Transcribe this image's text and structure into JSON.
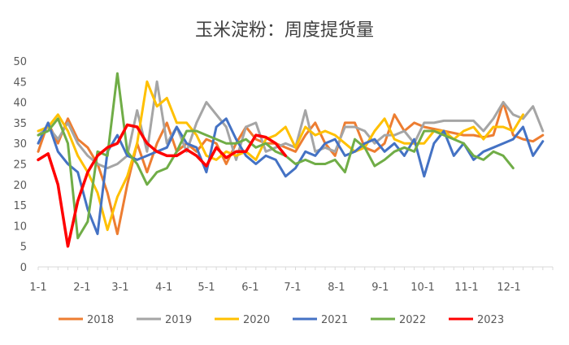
{
  "chart_data": {
    "type": "line",
    "title": "玉米淀粉：周度提货量",
    "xlabel": "",
    "ylabel": "",
    "ylim": [
      0,
      50
    ],
    "yticks": [
      0,
      5,
      10,
      15,
      20,
      25,
      30,
      35,
      40,
      45,
      50
    ],
    "x_tick_labels": [
      "1-1",
      "2-1",
      "3-1",
      "4-1",
      "5-1",
      "6-1",
      "7-1",
      "8-1",
      "9-1",
      "10-1",
      "11-1",
      "12-1"
    ],
    "x_tick_weeks": [
      1,
      5.43,
      9.29,
      13.71,
      18,
      22.43,
      26.71,
      31.14,
      35.57,
      39.86,
      44.29,
      48.57
    ],
    "week_range": [
      1,
      53
    ],
    "grid": false,
    "legend_position": "bottom",
    "series": [
      {
        "name": "2018",
        "color": "#ED7D31",
        "points": [
          [
            1,
            28
          ],
          [
            2,
            35
          ],
          [
            3,
            30
          ],
          [
            4,
            36
          ],
          [
            5,
            31
          ],
          [
            6,
            29
          ],
          [
            7,
            25
          ],
          [
            8,
            18
          ],
          [
            9,
            8
          ],
          [
            10,
            20
          ],
          [
            11,
            30
          ],
          [
            12,
            23
          ],
          [
            13,
            30
          ],
          [
            14,
            35
          ],
          [
            15,
            28
          ],
          [
            16,
            30
          ],
          [
            17,
            28
          ],
          [
            18,
            31
          ],
          [
            19,
            30
          ],
          [
            20,
            25
          ],
          [
            21,
            30
          ],
          [
            22,
            34
          ],
          [
            23,
            31
          ],
          [
            24,
            30
          ],
          [
            25,
            30
          ],
          [
            26,
            29
          ],
          [
            27,
            28
          ],
          [
            28,
            32
          ],
          [
            29,
            35
          ],
          [
            30,
            30
          ],
          [
            31,
            27
          ],
          [
            32,
            35
          ],
          [
            33,
            35
          ],
          [
            34,
            29
          ],
          [
            35,
            28
          ],
          [
            36,
            30
          ],
          [
            37,
            37
          ],
          [
            38,
            33
          ],
          [
            39,
            35
          ],
          [
            40,
            34
          ],
          [
            41,
            33.5
          ],
          [
            42,
            33
          ],
          [
            43,
            32.5
          ],
          [
            44,
            32
          ],
          [
            45,
            32
          ],
          [
            46,
            31.5
          ],
          [
            47,
            32
          ],
          [
            48,
            40
          ],
          [
            49,
            32
          ],
          [
            50,
            31
          ],
          [
            51,
            30.5
          ],
          [
            52,
            32
          ]
        ]
      },
      {
        "name": "2019",
        "color": "#A5A5A5",
        "points": [
          [
            1,
            32
          ],
          [
            2,
            34
          ],
          [
            3,
            31
          ],
          [
            4,
            35
          ],
          [
            5,
            30
          ],
          [
            6,
            27
          ],
          [
            7,
            25
          ],
          [
            8,
            24
          ],
          [
            9,
            25
          ],
          [
            10,
            27
          ],
          [
            11,
            38
          ],
          [
            12,
            28
          ],
          [
            13,
            45
          ],
          [
            14,
            30
          ],
          [
            15,
            34
          ],
          [
            16,
            28
          ],
          [
            17,
            35
          ],
          [
            18,
            40
          ],
          [
            19,
            37
          ],
          [
            20,
            34
          ],
          [
            21,
            26
          ],
          [
            22,
            34
          ],
          [
            23,
            35
          ],
          [
            24,
            28
          ],
          [
            25,
            29
          ],
          [
            26,
            30
          ],
          [
            27,
            29
          ],
          [
            28,
            38
          ],
          [
            29,
            28
          ],
          [
            30,
            29
          ],
          [
            31,
            28
          ],
          [
            32,
            34
          ],
          [
            33,
            34
          ],
          [
            34,
            33
          ],
          [
            35,
            30
          ],
          [
            36,
            32
          ],
          [
            37,
            32
          ],
          [
            38,
            33
          ],
          [
            39,
            30
          ],
          [
            40,
            35
          ],
          [
            41,
            35
          ],
          [
            42,
            35.5
          ],
          [
            43,
            35.5
          ],
          [
            44,
            35.5
          ],
          [
            45,
            35.5
          ],
          [
            46,
            33
          ],
          [
            47,
            36
          ],
          [
            48,
            40
          ],
          [
            49,
            37
          ],
          [
            50,
            36
          ],
          [
            51,
            39
          ],
          [
            52,
            33
          ]
        ]
      },
      {
        "name": "2020",
        "color": "#FFC000",
        "points": [
          [
            1,
            33
          ],
          [
            2,
            34
          ],
          [
            3,
            37
          ],
          [
            4,
            33
          ],
          [
            5,
            27
          ],
          [
            6,
            23
          ],
          [
            7,
            18
          ],
          [
            8,
            9
          ],
          [
            9,
            17
          ],
          [
            10,
            22
          ],
          [
            11,
            30
          ],
          [
            12,
            45
          ],
          [
            13,
            39
          ],
          [
            14,
            41
          ],
          [
            15,
            35
          ],
          [
            16,
            35
          ],
          [
            17,
            32
          ],
          [
            18,
            27
          ],
          [
            19,
            26
          ],
          [
            20,
            28
          ],
          [
            21,
            27
          ],
          [
            22,
            28
          ],
          [
            23,
            26
          ],
          [
            24,
            31
          ],
          [
            25,
            32
          ],
          [
            26,
            34
          ],
          [
            27,
            29
          ],
          [
            28,
            34
          ],
          [
            29,
            32
          ],
          [
            30,
            33
          ],
          [
            31,
            32
          ],
          [
            32,
            30
          ],
          [
            33,
            28
          ],
          [
            34,
            29
          ],
          [
            35,
            33
          ],
          [
            36,
            36
          ],
          [
            37,
            31
          ],
          [
            38,
            30
          ],
          [
            39,
            30
          ],
          [
            40,
            30
          ],
          [
            41,
            33
          ],
          [
            42,
            33
          ],
          [
            43,
            31
          ],
          [
            44,
            33
          ],
          [
            45,
            34
          ],
          [
            46,
            31
          ],
          [
            47,
            34
          ],
          [
            48,
            34
          ],
          [
            49,
            33
          ],
          [
            50,
            37
          ]
        ]
      },
      {
        "name": "2021",
        "color": "#4472C4",
        "points": [
          [
            1,
            30
          ],
          [
            2,
            35
          ],
          [
            3,
            28
          ],
          [
            4,
            25
          ],
          [
            5,
            23
          ],
          [
            6,
            14
          ],
          [
            7,
            8
          ],
          [
            8,
            28
          ],
          [
            9,
            32
          ],
          [
            10,
            27
          ],
          [
            11,
            26
          ],
          [
            12,
            27
          ],
          [
            13,
            28
          ],
          [
            14,
            29
          ],
          [
            15,
            34
          ],
          [
            16,
            30
          ],
          [
            17,
            29
          ],
          [
            18,
            23
          ],
          [
            19,
            34
          ],
          [
            20,
            36
          ],
          [
            21,
            31
          ],
          [
            22,
            27
          ],
          [
            23,
            25
          ],
          [
            24,
            27
          ],
          [
            25,
            26
          ],
          [
            26,
            22
          ],
          [
            27,
            24
          ],
          [
            28,
            28
          ],
          [
            29,
            27
          ],
          [
            30,
            30
          ],
          [
            31,
            31
          ],
          [
            32,
            27
          ],
          [
            33,
            28
          ],
          [
            34,
            30
          ],
          [
            35,
            31
          ],
          [
            36,
            28
          ],
          [
            37,
            30
          ],
          [
            38,
            27
          ],
          [
            39,
            31
          ],
          [
            40,
            22
          ],
          [
            41,
            30
          ],
          [
            42,
            33
          ],
          [
            43,
            27
          ],
          [
            44,
            30
          ],
          [
            45,
            26
          ],
          [
            46,
            28
          ],
          [
            47,
            29
          ],
          [
            48,
            30
          ],
          [
            49,
            31
          ],
          [
            50,
            34
          ],
          [
            51,
            27
          ],
          [
            52,
            30.5
          ]
        ]
      },
      {
        "name": "2022",
        "color": "#70AD47",
        "points": [
          [
            1,
            32
          ],
          [
            2,
            33
          ],
          [
            3,
            36
          ],
          [
            4,
            30
          ],
          [
            5,
            7
          ],
          [
            6,
            11
          ],
          [
            7,
            28
          ],
          [
            8,
            27
          ],
          [
            9,
            47
          ],
          [
            10,
            28
          ],
          [
            11,
            25
          ],
          [
            12,
            20
          ],
          [
            13,
            23
          ],
          [
            14,
            24
          ],
          [
            15,
            28
          ],
          [
            16,
            33
          ],
          [
            17,
            33
          ],
          [
            18,
            32
          ],
          [
            19,
            31
          ],
          [
            20,
            30
          ],
          [
            21,
            30
          ],
          [
            22,
            31
          ],
          [
            23,
            29
          ],
          [
            24,
            30
          ],
          [
            25,
            28
          ],
          [
            26,
            27
          ],
          [
            27,
            25
          ],
          [
            28,
            26
          ],
          [
            29,
            25
          ],
          [
            30,
            25
          ],
          [
            31,
            26
          ],
          [
            32,
            23
          ],
          [
            33,
            31
          ],
          [
            34,
            29
          ],
          [
            35,
            24.5
          ],
          [
            36,
            26
          ],
          [
            37,
            28
          ],
          [
            38,
            29
          ],
          [
            39,
            28
          ],
          [
            40,
            33
          ],
          [
            41,
            33
          ],
          [
            42,
            32
          ],
          [
            43,
            31
          ],
          [
            44,
            30
          ],
          [
            45,
            27
          ],
          [
            46,
            26
          ],
          [
            47,
            28
          ],
          [
            48,
            27
          ],
          [
            49,
            24
          ]
        ]
      },
      {
        "name": "2023",
        "color": "#FF0000",
        "points": [
          [
            1,
            26
          ],
          [
            2,
            27.5
          ],
          [
            3,
            20
          ],
          [
            4,
            5
          ],
          [
            5,
            16
          ],
          [
            6,
            23
          ],
          [
            7,
            27
          ],
          [
            8,
            29
          ],
          [
            9,
            30
          ],
          [
            10,
            34.5
          ],
          [
            11,
            34
          ],
          [
            12,
            30
          ],
          [
            13,
            28
          ],
          [
            14,
            27
          ],
          [
            15,
            27
          ],
          [
            16,
            28.5
          ],
          [
            17,
            27
          ],
          [
            18,
            24.5
          ],
          [
            19,
            29
          ],
          [
            20,
            26.5
          ],
          [
            21,
            28
          ],
          [
            22,
            28
          ],
          [
            23,
            32
          ],
          [
            24,
            31.5
          ],
          [
            25,
            30
          ],
          [
            26,
            27
          ]
        ]
      }
    ]
  }
}
